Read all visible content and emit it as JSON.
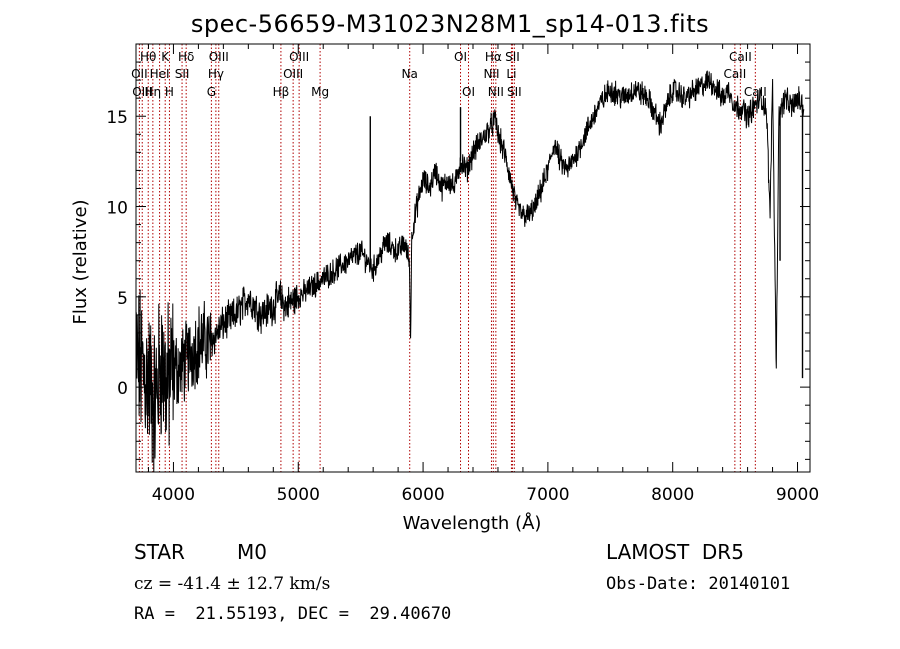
{
  "title": "spec-56659-M31023N28M1_sp14-013.fits",
  "info": {
    "class": "STAR",
    "subclass": "M0",
    "survey": "LAMOST  DR5",
    "cz": "cz = -41.4 ± 12.7 km/s",
    "obs_date": "Obs-Date: 20140101",
    "coords": "RA =  21.55193, DEC =  29.40670"
  },
  "chart_data": {
    "type": "line",
    "title": "spec-56659-M31023N28M1_sp14-013.fits",
    "xlabel": "Wavelength (Å)",
    "ylabel": "Flux (relative)",
    "xlim": [
      3700,
      9100
    ],
    "ylim": [
      -4.7,
      19.0
    ],
    "xticks": [
      4000,
      5000,
      6000,
      7000,
      8000,
      9000
    ],
    "yticks": [
      0,
      5,
      10,
      15
    ],
    "grid": false,
    "legend": "none",
    "series": [
      {
        "x": [
          3700,
          3750,
          3800,
          3850,
          3900,
          3950,
          4000,
          4050,
          4100,
          4150,
          4200,
          4250,
          4300,
          4350,
          4400,
          4500,
          4600,
          4700,
          4800,
          4850,
          4900,
          5000,
          5100,
          5200,
          5300,
          5400,
          5500,
          5600,
          5700,
          5800,
          5850,
          5890,
          5900,
          5910,
          5950,
          6000,
          6050,
          6100,
          6150,
          6200,
          6250,
          6300,
          6350,
          6400,
          6450,
          6500,
          6550,
          6580,
          6600,
          6650,
          6700,
          6750,
          6800,
          6850,
          6900,
          7000,
          7050,
          7100,
          7150,
          7200,
          7300,
          7400,
          7500,
          7600,
          7700,
          7800,
          7900,
          8000,
          8100,
          8200,
          8300,
          8400,
          8450,
          8500,
          8550,
          8600,
          8650,
          8700,
          8750,
          8780,
          8800,
          8830,
          8850,
          8900,
          8950,
          9000,
          9050
        ],
        "values": [
          1.5,
          1.0,
          0.5,
          -1.0,
          1.5,
          0.0,
          1.0,
          1.0,
          1.5,
          2.0,
          2.5,
          2.5,
          2.5,
          3.0,
          3.5,
          4.0,
          5.0,
          4.0,
          4.5,
          5.0,
          4.5,
          5.0,
          5.5,
          6.0,
          6.5,
          7.0,
          7.5,
          6.5,
          8.0,
          7.5,
          8.0,
          7.0,
          2.5,
          8.5,
          10.0,
          11.5,
          11.0,
          12.0,
          11.0,
          11.5,
          11.0,
          12.5,
          12.0,
          13.0,
          13.5,
          14.0,
          14.5,
          14.8,
          14.0,
          13.0,
          11.5,
          10.0,
          9.5,
          9.5,
          10.0,
          12.0,
          13.5,
          12.5,
          12.0,
          12.5,
          14.0,
          15.5,
          16.5,
          16.0,
          16.5,
          16.0,
          14.5,
          16.5,
          16.0,
          16.5,
          17.0,
          16.0,
          16.5,
          15.5,
          15.5,
          15.0,
          15.5,
          16.0,
          15.5,
          9.5,
          17.0,
          0.8,
          15.0,
          16.0,
          15.5,
          16.0,
          15.5
        ]
      }
    ],
    "spikes": [
      {
        "x": 5577,
        "value": 15.0
      },
      {
        "x": 6300,
        "value": 15.5
      },
      {
        "x": 8780,
        "value": 9.5
      },
      {
        "x": 8830,
        "value": 0.8
      },
      {
        "x": 8860,
        "value": 7.0
      },
      {
        "x": 9040,
        "value": 0.5
      }
    ],
    "annotations": [
      {
        "label": "Hθ",
        "x": 3798,
        "row": 0
      },
      {
        "label": "K",
        "x": 3934,
        "row": 0
      },
      {
        "label": "Hδ",
        "x": 4102,
        "row": 0
      },
      {
        "label": "OIII",
        "x": 4363,
        "row": 0
      },
      {
        "label": "OIII",
        "x": 5007,
        "row": 0
      },
      {
        "label": "OI",
        "x": 6300,
        "row": 0
      },
      {
        "label": "Hα",
        "x": 6563,
        "row": 0
      },
      {
        "label": "SII",
        "x": 6716,
        "row": 0
      },
      {
        "label": "CaII",
        "x": 8542,
        "row": 0
      },
      {
        "label": "OII",
        "x": 3727,
        "row": 1
      },
      {
        "label": "HeI",
        "x": 3889,
        "row": 1
      },
      {
        "label": "SII",
        "x": 4069,
        "row": 1
      },
      {
        "label": "Hγ",
        "x": 4340,
        "row": 1
      },
      {
        "label": "OIII",
        "x": 4959,
        "row": 1
      },
      {
        "label": "Na",
        "x": 5893,
        "row": 1
      },
      {
        "label": "NII",
        "x": 6548,
        "row": 1
      },
      {
        "label": "Li",
        "x": 6708,
        "row": 1
      },
      {
        "label": "CaII",
        "x": 8498,
        "row": 1
      },
      {
        "label": "OIII",
        "x": 3750,
        "row": 2
      },
      {
        "label": "Hη",
        "x": 3835,
        "row": 2
      },
      {
        "label": "H",
        "x": 3968,
        "row": 2
      },
      {
        "label": "G",
        "x": 4304,
        "row": 2
      },
      {
        "label": "Hβ",
        "x": 4861,
        "row": 2
      },
      {
        "label": "Mg",
        "x": 5175,
        "row": 2
      },
      {
        "label": "OI",
        "x": 6364,
        "row": 2
      },
      {
        "label": "NII",
        "x": 6583,
        "row": 2
      },
      {
        "label": "SII",
        "x": 6731,
        "row": 2
      },
      {
        "label": "CaII",
        "x": 8662,
        "row": 2
      }
    ],
    "line_markers": [
      3727,
      3750,
      3798,
      3835,
      3889,
      3934,
      3968,
      4069,
      4102,
      4304,
      4340,
      4363,
      4861,
      4959,
      5007,
      5175,
      5893,
      6300,
      6364,
      6548,
      6563,
      6583,
      6708,
      6716,
      6731,
      8498,
      8542,
      8662
    ],
    "colors": {
      "spectrum": "#000000",
      "markers": "#b00000",
      "axes": "#000000"
    }
  }
}
